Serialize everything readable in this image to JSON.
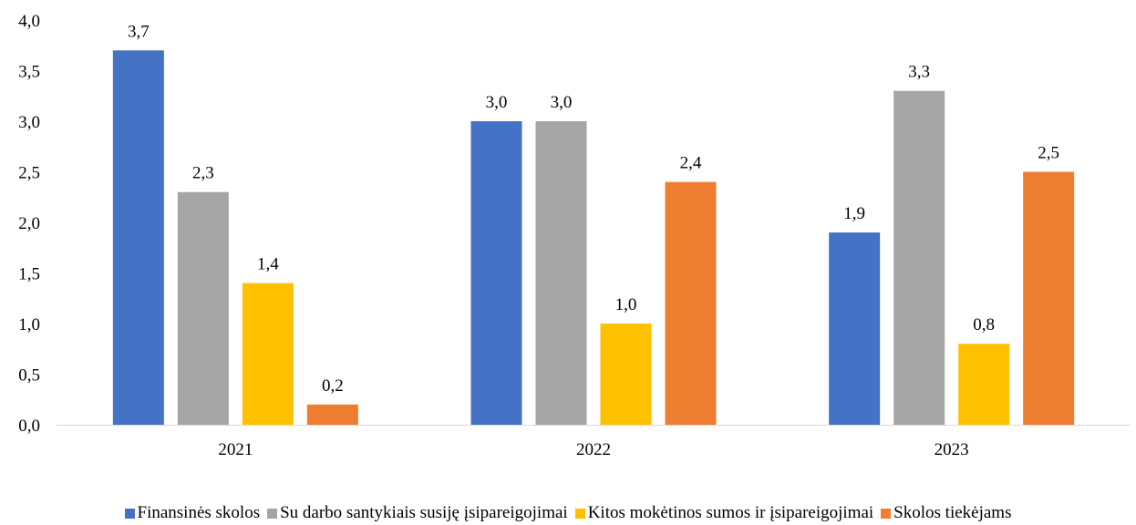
{
  "chart_data": {
    "type": "bar",
    "categories": [
      "2021",
      "2022",
      "2023"
    ],
    "series": [
      {
        "name": "Finansinės skolos",
        "color": "#4472C4",
        "values": [
          3.7,
          3.0,
          1.9
        ],
        "labels": [
          "3,7",
          "3,0",
          "1,9"
        ]
      },
      {
        "name": "Su darbo santykiais susiję įsipareigojimai",
        "color": "#A5A5A5",
        "values": [
          2.3,
          3.0,
          3.3
        ],
        "labels": [
          "2,3",
          "3,0",
          "3,3"
        ]
      },
      {
        "name": "Kitos mokėtinos sumos ir įsipareigojimai",
        "color": "#FFC000",
        "values": [
          1.4,
          1.0,
          0.8
        ],
        "labels": [
          "1,4",
          "1,0",
          "0,8"
        ]
      },
      {
        "name": "Skolos tiekėjams",
        "color": "#ED7D31",
        "values": [
          0.2,
          2.4,
          2.5
        ],
        "labels": [
          "0,2",
          "2,4",
          "2,5"
        ]
      }
    ],
    "ylim": [
      0,
      4
    ],
    "yticks": [
      "0,0",
      "0,5",
      "1,0",
      "1,5",
      "2,0",
      "2,5",
      "3,0",
      "3,5",
      "4,0"
    ],
    "grid": false,
    "legend_position": "bottom",
    "title": "",
    "xlabel": "",
    "ylabel": ""
  }
}
